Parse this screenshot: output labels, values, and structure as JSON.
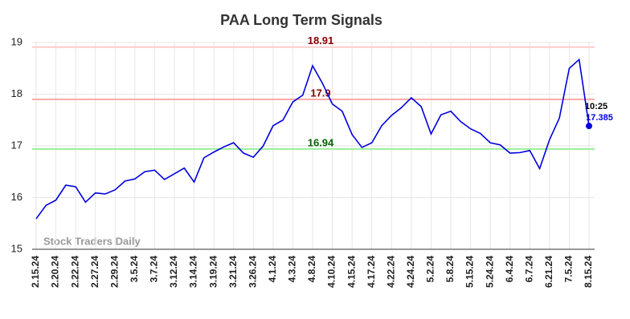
{
  "chart_data": {
    "type": "line",
    "title": "PAA Long Term Signals",
    "watermark": "Stock Traders Daily",
    "categories": [
      "2.15.24",
      null,
      "2.20.24",
      null,
      "2.22.24",
      null,
      "2.27.24",
      null,
      "2.29.24",
      null,
      "3.5.24",
      null,
      "3.7.24",
      null,
      "3.12.24",
      null,
      "3.14.24",
      null,
      "3.19.24",
      null,
      "3.21.24",
      null,
      "3.26.24",
      null,
      "4.1.24",
      null,
      "4.3.24",
      null,
      "4.8.24",
      null,
      "4.10.24",
      null,
      "4.15.24",
      null,
      "4.17.24",
      null,
      "4.22.24",
      null,
      "4.24.24",
      null,
      "5.2.24",
      null,
      "5.8.24",
      null,
      "5.15.24",
      null,
      "5.24.24",
      null,
      "6.4.24",
      null,
      "6.7.24",
      null,
      "6.21.24",
      null,
      "7.5.24",
      null,
      "8.15.24"
    ],
    "series": [
      {
        "name": "PAA",
        "color": "#0000dd",
        "values": [
          15.59,
          15.85,
          15.95,
          16.24,
          16.21,
          15.91,
          16.09,
          16.07,
          16.15,
          16.32,
          16.36,
          16.5,
          16.53,
          16.35,
          16.46,
          16.57,
          16.3,
          16.77,
          16.88,
          16.98,
          17.06,
          16.86,
          16.78,
          17.0,
          17.39,
          17.5,
          17.85,
          17.98,
          18.55,
          18.21,
          17.81,
          17.67,
          17.22,
          16.97,
          17.06,
          17.39,
          17.59,
          17.74,
          17.93,
          17.76,
          17.23,
          17.6,
          17.67,
          17.47,
          17.33,
          17.24,
          17.06,
          17.02,
          16.86,
          16.87,
          16.91,
          16.56,
          17.12,
          17.54,
          18.5,
          18.67,
          17.385
        ]
      }
    ],
    "hlines": [
      {
        "value": 18.91,
        "color": "#ffcccc",
        "label_color": "#8b0000"
      },
      {
        "value": 17.9,
        "color": "#ffaaaa",
        "label_color": "#8b0000"
      },
      {
        "value": 16.94,
        "color": "#99ee99",
        "label_color": "#006400"
      }
    ],
    "last_time": "10:25",
    "ylim": [
      15,
      19
    ],
    "yticks": [
      15,
      16,
      17,
      18,
      19
    ],
    "grid": true
  }
}
